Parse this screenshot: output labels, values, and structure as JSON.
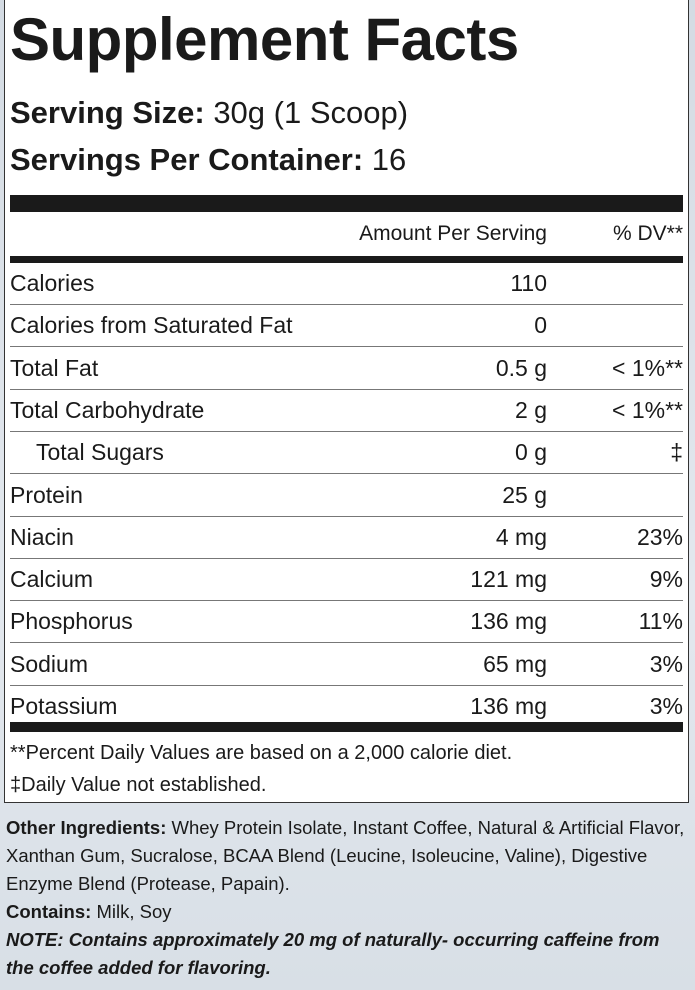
{
  "title": "Supplement Facts",
  "serving_size": {
    "label": "Serving Size:",
    "value": "30g (1 Scoop)"
  },
  "servings_per_container": {
    "label": "Servings Per Container:",
    "value": "16"
  },
  "header": {
    "amount": "Amount Per Serving",
    "dv": "% DV**"
  },
  "rows": [
    {
      "name": "Calories",
      "amount": "110",
      "dv": ""
    },
    {
      "name": "Calories from Saturated Fat",
      "amount": "0",
      "dv": ""
    },
    {
      "name": "Total Fat",
      "amount": "0.5 g",
      "dv": "< 1%**"
    },
    {
      "name": "Total Carbohydrate",
      "amount": "2 g",
      "dv": "< 1%**"
    },
    {
      "name": "Total Sugars",
      "amount": "0 g",
      "dv": "‡"
    },
    {
      "name": "Protein",
      "amount": "25 g",
      "dv": ""
    },
    {
      "name": "Niacin",
      "amount": "4 mg",
      "dv": "23%"
    },
    {
      "name": "Calcium",
      "amount": "121 mg",
      "dv": "9%"
    },
    {
      "name": "Phosphorus",
      "amount": "136 mg",
      "dv": "11%"
    },
    {
      "name": "Sodium",
      "amount": "65 mg",
      "dv": "3%"
    },
    {
      "name": "Potassium",
      "amount": "136 mg",
      "dv": "3%"
    }
  ],
  "footnotes": [
    "**Percent Daily Values are based on a 2,000 calorie diet.",
    "‡Daily Value not established."
  ],
  "other_ingredients": {
    "label": "Other Ingredients:",
    "value": " Whey Protein Isolate, Instant Coffee, Natural & Artificial Flavor, Xanthan Gum, Sucralose, BCAA Blend (Leucine, Isoleucine, Valine), Digestive Enzyme Blend (Protease, Papain)."
  },
  "contains": {
    "label": "Contains:",
    "value": " Milk, Soy"
  },
  "note": "NOTE: Contains approximately 20 mg of naturally- occurring caffeine from the coffee added for flavoring."
}
